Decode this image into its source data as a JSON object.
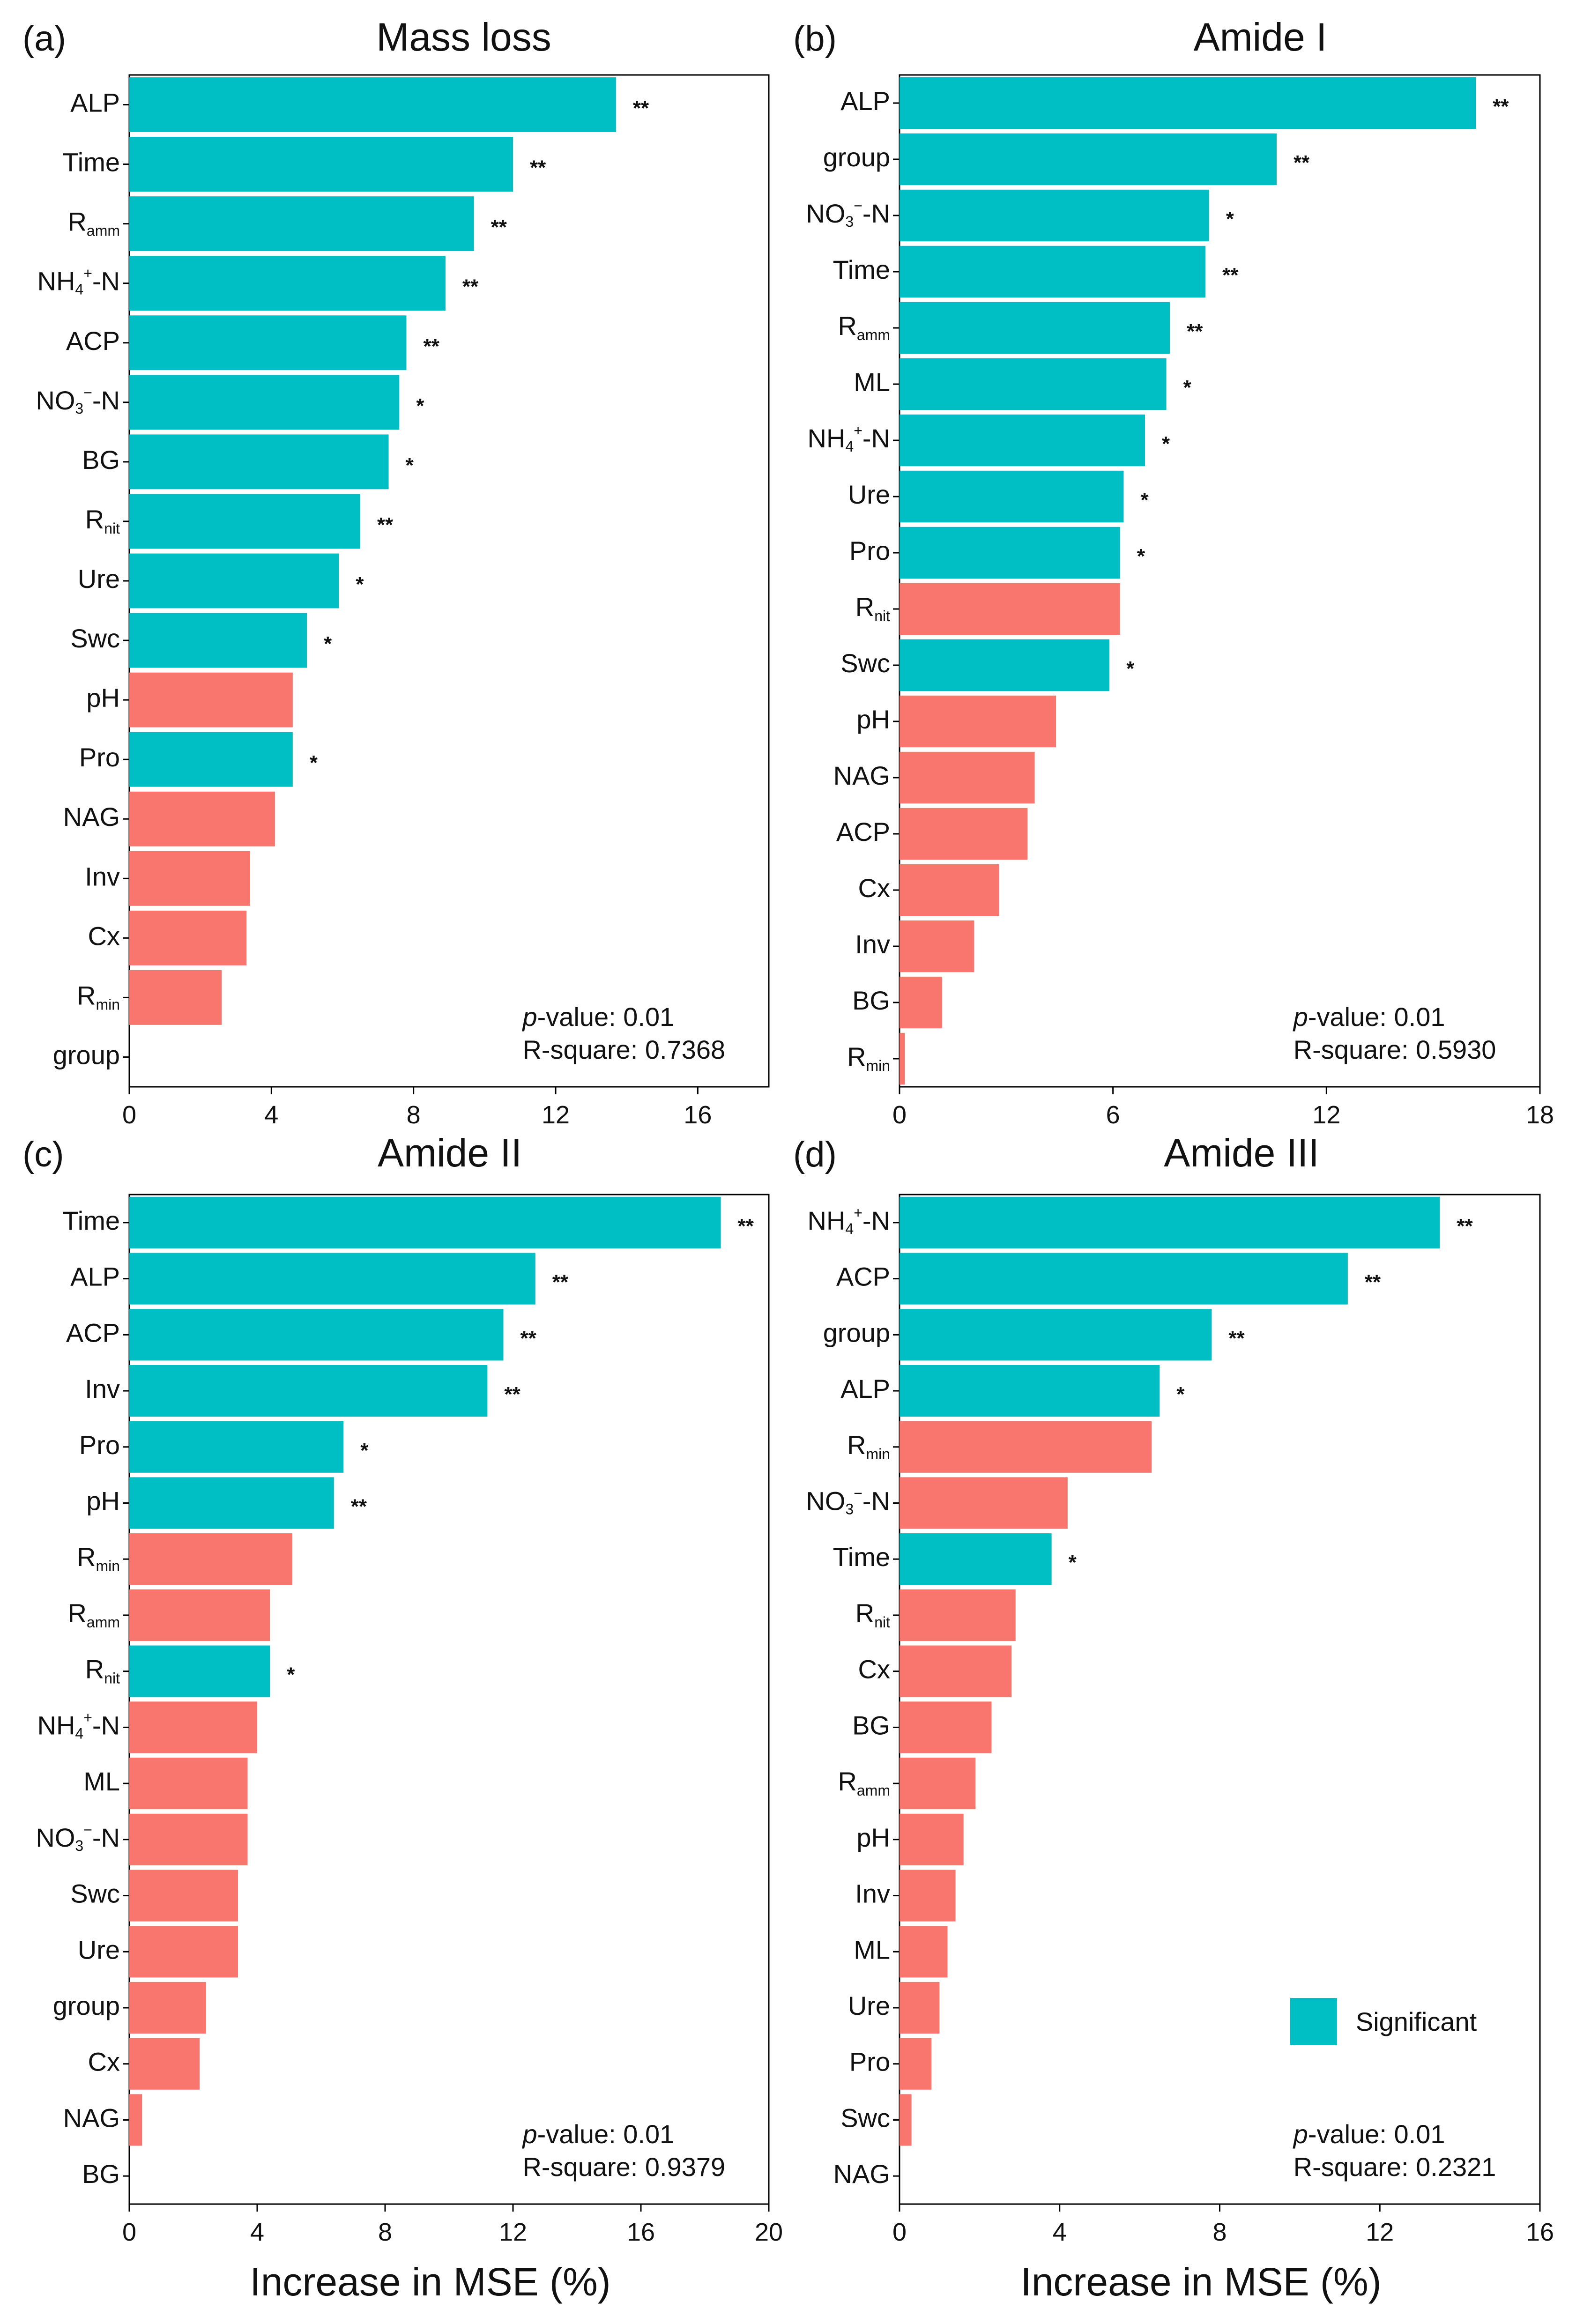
{
  "colors": {
    "significant": "#00BFC4",
    "nonsignificant": "#F8766D",
    "axis": "#000000"
  },
  "xlabel": "Increase in MSE (%)",
  "legend": {
    "label": "Significant"
  },
  "chart_data": [
    {
      "type": "bar",
      "panel": "(a)",
      "title": "Mass loss",
      "xlim": [
        0,
        18
      ],
      "xticks": [
        0,
        4,
        8,
        12,
        16
      ],
      "stat_p_label": "p",
      "stat_p_text": "-value: 0.01",
      "stat_r": "R-square: 0.7368",
      "bars": [
        {
          "cat": "ALP",
          "value": 13.7,
          "sig": true,
          "stars": "**"
        },
        {
          "cat": "Time",
          "value": 10.8,
          "sig": true,
          "stars": "**"
        },
        {
          "cat": "R|amm",
          "value": 9.7,
          "sig": true,
          "stars": "**"
        },
        {
          "cat": "NH4+-N",
          "value": 8.9,
          "sig": true,
          "stars": "**"
        },
        {
          "cat": "ACP",
          "value": 7.8,
          "sig": true,
          "stars": "**"
        },
        {
          "cat": "NO3−-N",
          "value": 7.6,
          "sig": true,
          "stars": "*"
        },
        {
          "cat": "BG",
          "value": 7.3,
          "sig": true,
          "stars": "*"
        },
        {
          "cat": "R|nit",
          "value": 6.5,
          "sig": true,
          "stars": "**"
        },
        {
          "cat": "Ure",
          "value": 5.9,
          "sig": true,
          "stars": "*"
        },
        {
          "cat": "Swc",
          "value": 5.0,
          "sig": true,
          "stars": "*"
        },
        {
          "cat": "pH",
          "value": 4.6,
          "sig": false,
          "stars": ""
        },
        {
          "cat": "Pro",
          "value": 4.6,
          "sig": true,
          "stars": "*"
        },
        {
          "cat": "NAG",
          "value": 4.1,
          "sig": false,
          "stars": ""
        },
        {
          "cat": "Inv",
          "value": 3.4,
          "sig": false,
          "stars": ""
        },
        {
          "cat": "Cx",
          "value": 3.3,
          "sig": false,
          "stars": ""
        },
        {
          "cat": "R|min",
          "value": 2.6,
          "sig": false,
          "stars": ""
        },
        {
          "cat": "group",
          "value": 0.0,
          "sig": false,
          "stars": ""
        }
      ]
    },
    {
      "type": "bar",
      "panel": "(b)",
      "title": "Amide I",
      "xlim": [
        0,
        18
      ],
      "xticks": [
        0,
        6,
        12,
        18
      ],
      "stat_p_label": "p",
      "stat_p_text": "-value: 0.01",
      "stat_r": "R-square: 0.5930",
      "bars": [
        {
          "cat": "ALP",
          "value": 16.2,
          "sig": true,
          "stars": "**"
        },
        {
          "cat": "group",
          "value": 10.6,
          "sig": true,
          "stars": "**"
        },
        {
          "cat": "NO3−-N",
          "value": 8.7,
          "sig": true,
          "stars": "*"
        },
        {
          "cat": "Time",
          "value": 8.6,
          "sig": true,
          "stars": "**"
        },
        {
          "cat": "R|amm",
          "value": 7.6,
          "sig": true,
          "stars": "**"
        },
        {
          "cat": "ML",
          "value": 7.5,
          "sig": true,
          "stars": "*"
        },
        {
          "cat": "NH4+-N",
          "value": 6.9,
          "sig": true,
          "stars": "*"
        },
        {
          "cat": "Ure",
          "value": 6.3,
          "sig": true,
          "stars": "*"
        },
        {
          "cat": "Pro",
          "value": 6.2,
          "sig": true,
          "stars": "*"
        },
        {
          "cat": "R|nit",
          "value": 6.2,
          "sig": false,
          "stars": ""
        },
        {
          "cat": "Swc",
          "value": 5.9,
          "sig": true,
          "stars": "*"
        },
        {
          "cat": "pH",
          "value": 4.4,
          "sig": false,
          "stars": ""
        },
        {
          "cat": "NAG",
          "value": 3.8,
          "sig": false,
          "stars": ""
        },
        {
          "cat": "ACP",
          "value": 3.6,
          "sig": false,
          "stars": ""
        },
        {
          "cat": "Cx",
          "value": 2.8,
          "sig": false,
          "stars": ""
        },
        {
          "cat": "Inv",
          "value": 2.1,
          "sig": false,
          "stars": ""
        },
        {
          "cat": "BG",
          "value": 1.2,
          "sig": false,
          "stars": ""
        },
        {
          "cat": "R|min",
          "value": 0.15,
          "sig": false,
          "stars": ""
        }
      ]
    },
    {
      "type": "bar",
      "panel": "(c)",
      "title": "Amide II",
      "xlim": [
        0,
        20
      ],
      "xticks": [
        0,
        4,
        8,
        12,
        16,
        20
      ],
      "stat_p_label": "p",
      "stat_p_text": "-value: 0.01",
      "stat_r": "R-square: 0.9379",
      "bars": [
        {
          "cat": "Time",
          "value": 18.5,
          "sig": true,
          "stars": "**"
        },
        {
          "cat": "ALP",
          "value": 12.7,
          "sig": true,
          "stars": "**"
        },
        {
          "cat": "ACP",
          "value": 11.7,
          "sig": true,
          "stars": "**"
        },
        {
          "cat": "Inv",
          "value": 11.2,
          "sig": true,
          "stars": "**"
        },
        {
          "cat": "Pro",
          "value": 6.7,
          "sig": true,
          "stars": "*"
        },
        {
          "cat": "pH",
          "value": 6.4,
          "sig": true,
          "stars": "**"
        },
        {
          "cat": "R|min",
          "value": 5.1,
          "sig": false,
          "stars": ""
        },
        {
          "cat": "R|amm",
          "value": 4.4,
          "sig": false,
          "stars": ""
        },
        {
          "cat": "R|nit",
          "value": 4.4,
          "sig": true,
          "stars": "*"
        },
        {
          "cat": "NH4+-N",
          "value": 4.0,
          "sig": false,
          "stars": ""
        },
        {
          "cat": "ML",
          "value": 3.7,
          "sig": false,
          "stars": ""
        },
        {
          "cat": "NO3−-N",
          "value": 3.7,
          "sig": false,
          "stars": ""
        },
        {
          "cat": "Swc",
          "value": 3.4,
          "sig": false,
          "stars": ""
        },
        {
          "cat": "Ure",
          "value": 3.4,
          "sig": false,
          "stars": ""
        },
        {
          "cat": "group",
          "value": 2.4,
          "sig": false,
          "stars": ""
        },
        {
          "cat": "Cx",
          "value": 2.2,
          "sig": false,
          "stars": ""
        },
        {
          "cat": "NAG",
          "value": 0.4,
          "sig": false,
          "stars": ""
        },
        {
          "cat": "BG",
          "value": 0.0,
          "sig": false,
          "stars": ""
        }
      ]
    },
    {
      "type": "bar",
      "panel": "(d)",
      "title": "Amide III",
      "xlim": [
        0,
        16
      ],
      "xticks": [
        0,
        4,
        8,
        12,
        16
      ],
      "stat_p_label": "p",
      "stat_p_text": "-value: 0.01",
      "stat_r": "R-square: 0.2321",
      "legend": true,
      "bars": [
        {
          "cat": "NH4+-N",
          "value": 13.5,
          "sig": true,
          "stars": "**"
        },
        {
          "cat": "ACP",
          "value": 11.2,
          "sig": true,
          "stars": "**"
        },
        {
          "cat": "group",
          "value": 7.8,
          "sig": true,
          "stars": "**"
        },
        {
          "cat": "ALP",
          "value": 6.5,
          "sig": true,
          "stars": "*"
        },
        {
          "cat": "R|min",
          "value": 6.3,
          "sig": false,
          "stars": ""
        },
        {
          "cat": "NO3−-N",
          "value": 4.2,
          "sig": false,
          "stars": ""
        },
        {
          "cat": "Time",
          "value": 3.8,
          "sig": true,
          "stars": "*"
        },
        {
          "cat": "R|nit",
          "value": 2.9,
          "sig": false,
          "stars": ""
        },
        {
          "cat": "Cx",
          "value": 2.8,
          "sig": false,
          "stars": ""
        },
        {
          "cat": "BG",
          "value": 2.3,
          "sig": false,
          "stars": ""
        },
        {
          "cat": "R|amm",
          "value": 1.9,
          "sig": false,
          "stars": ""
        },
        {
          "cat": "pH",
          "value": 1.6,
          "sig": false,
          "stars": ""
        },
        {
          "cat": "Inv",
          "value": 1.4,
          "sig": false,
          "stars": ""
        },
        {
          "cat": "ML",
          "value": 1.2,
          "sig": false,
          "stars": ""
        },
        {
          "cat": "Ure",
          "value": 1.0,
          "sig": false,
          "stars": ""
        },
        {
          "cat": "Pro",
          "value": 0.8,
          "sig": false,
          "stars": ""
        },
        {
          "cat": "Swc",
          "value": 0.3,
          "sig": false,
          "stars": ""
        },
        {
          "cat": "NAG",
          "value": 0.0,
          "sig": false,
          "stars": ""
        }
      ]
    }
  ]
}
